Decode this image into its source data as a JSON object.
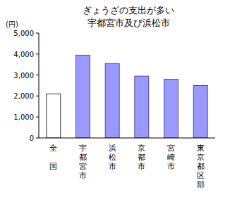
{
  "chart_data": {
    "type": "bar",
    "title": "ぎょうざの支出が多い",
    "subtitle": "宇都宮市及び浜松市",
    "ylabel": "(円)",
    "categories": [
      "全国",
      "宇都宮市",
      "浜松市",
      "京都市",
      "宮崎市",
      "東京都区部"
    ],
    "values": [
      2100,
      3950,
      3550,
      2950,
      2800,
      2500
    ],
    "colors": [
      "#ffffff",
      "#9999ff",
      "#9999ff",
      "#9999ff",
      "#9999ff",
      "#9999ff"
    ],
    "ylim": [
      0,
      5000
    ],
    "yticks": [
      0,
      {
        "value": 1000,
        "label": "1,000"
      },
      {
        "value": 2000,
        "label": "2,000"
      },
      {
        "value": 3000,
        "label": "3,000"
      },
      {
        "value": 4000,
        "label": "4,000"
      },
      {
        "value": 5000,
        "label": "5,000"
      }
    ],
    "grid": false
  }
}
